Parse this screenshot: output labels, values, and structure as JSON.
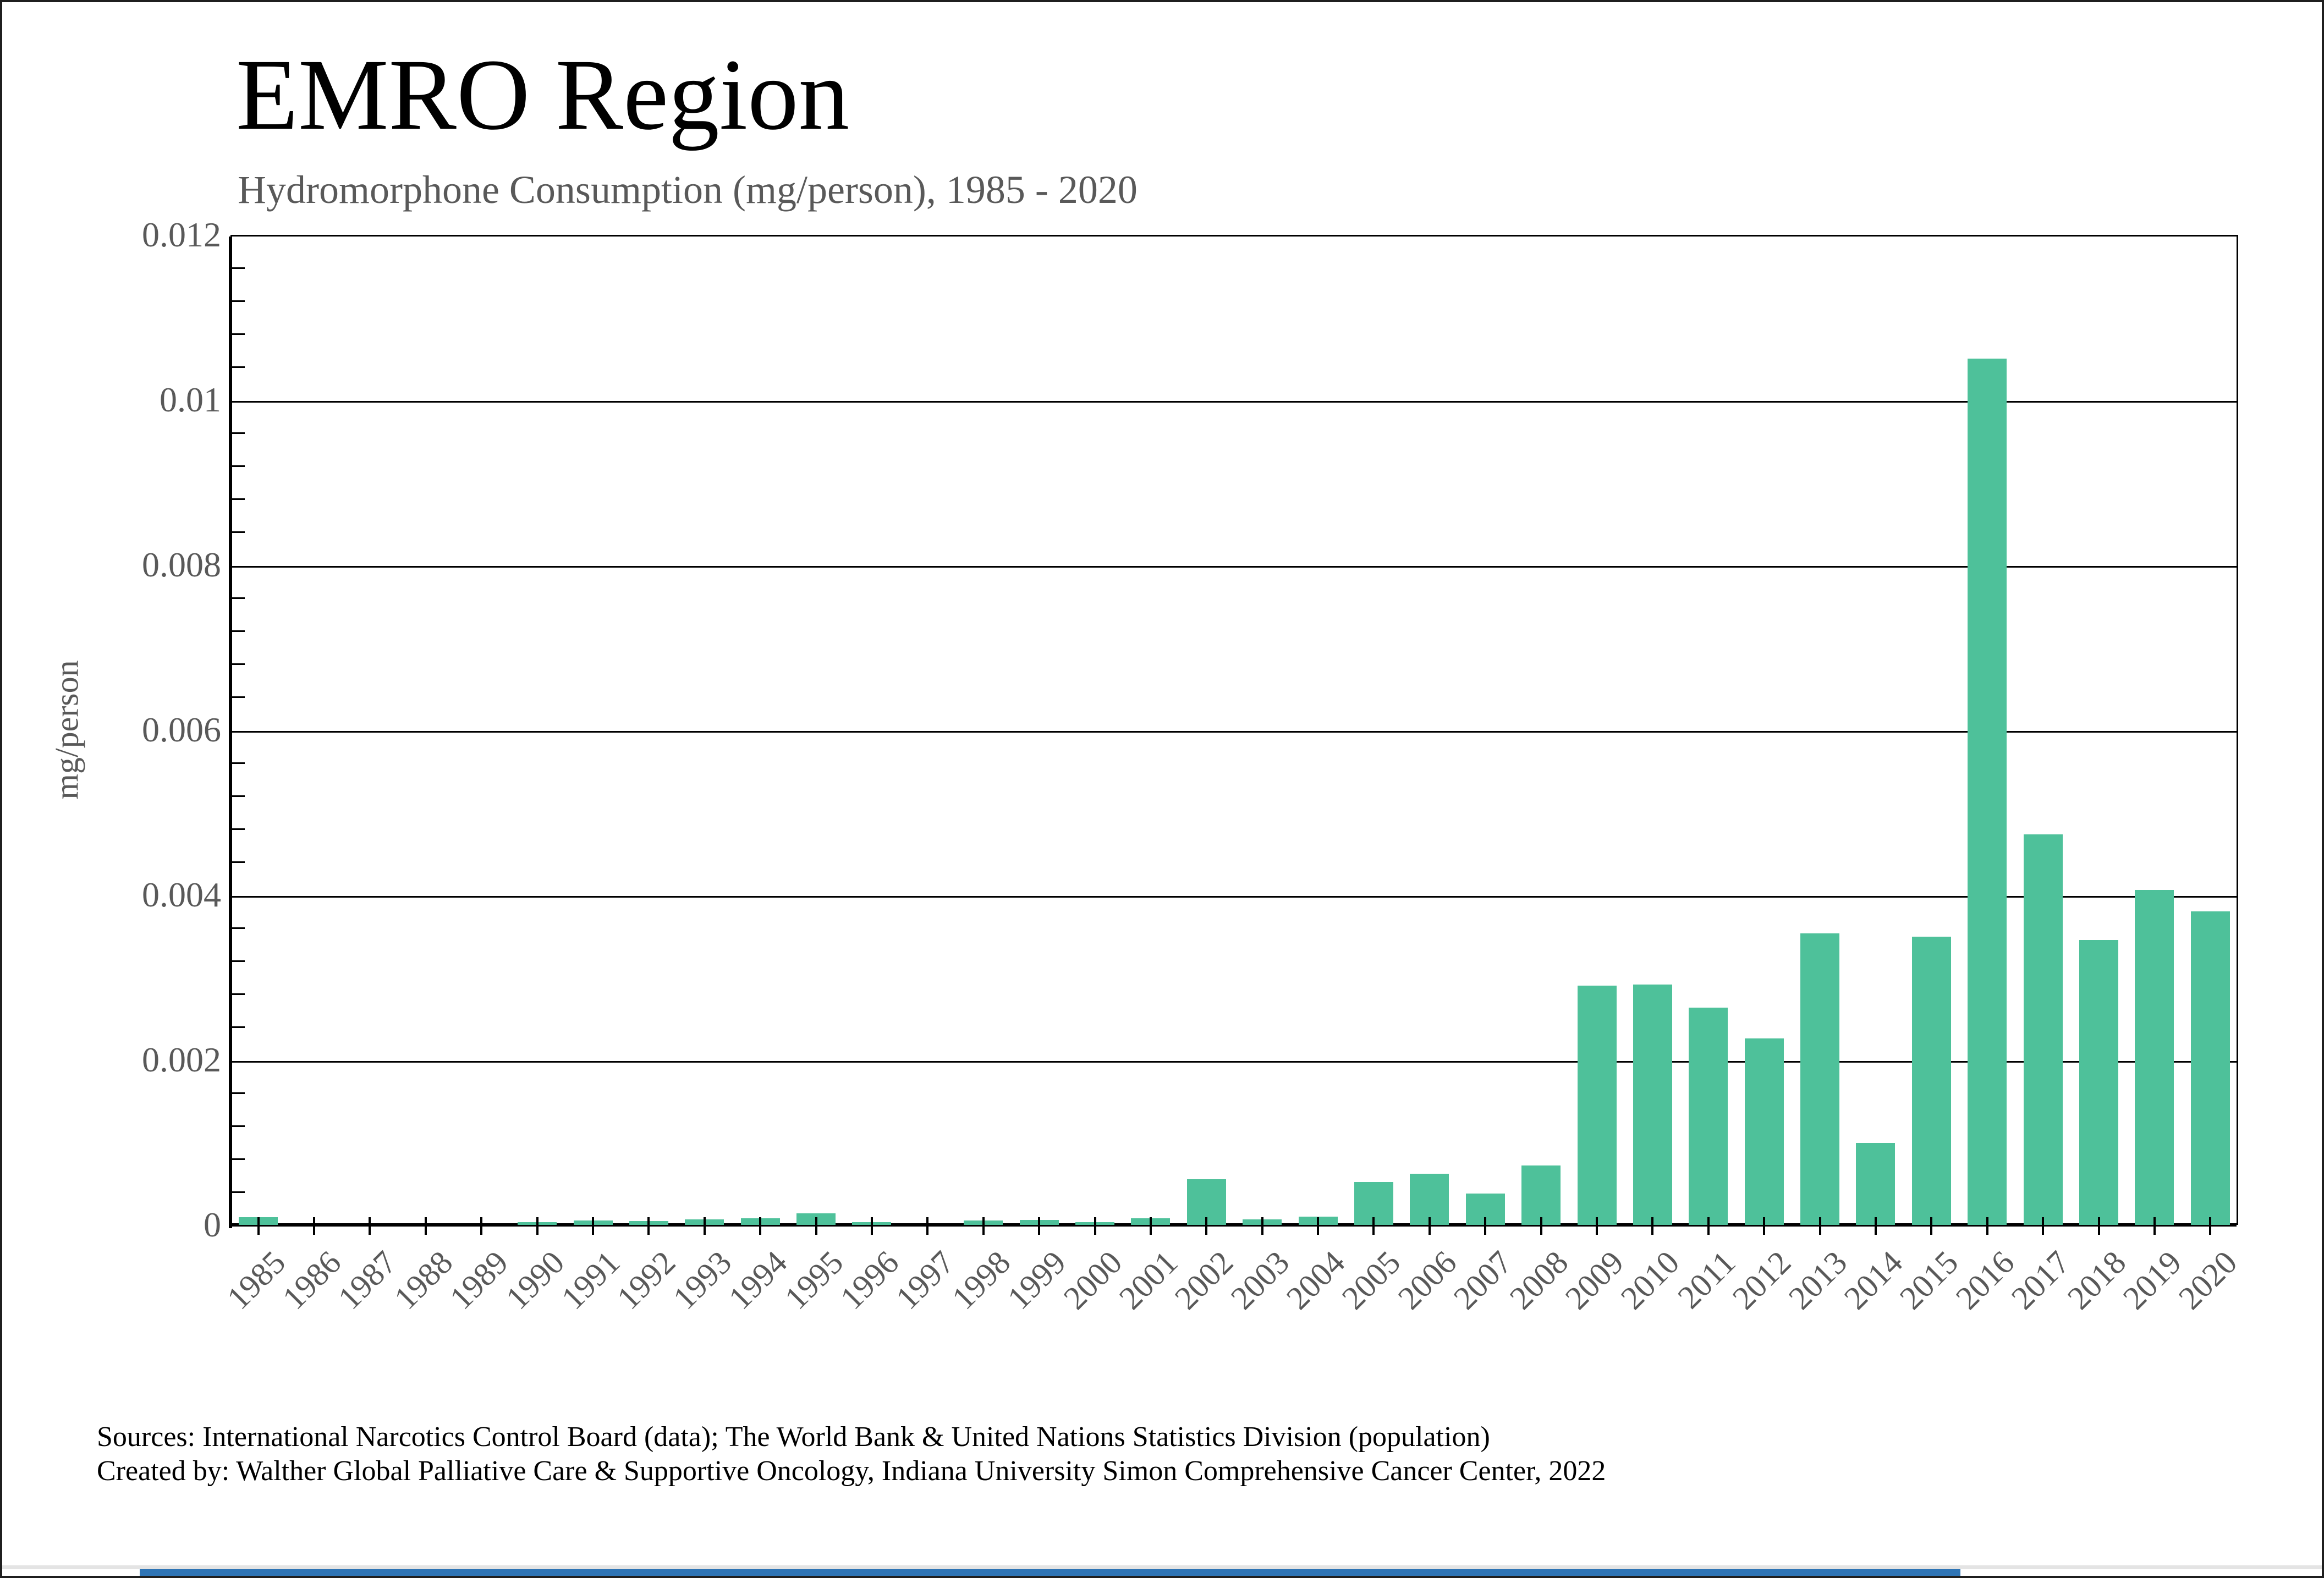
{
  "header": {
    "title": "EMRO Region",
    "subtitle": "Hydromorphone Consumption (mg/person), 1985 - 2020"
  },
  "footer": {
    "line1": "Sources: International Narcotics Control Board (data); The World Bank & United Nations Statistics Division (population)",
    "line2": "Created by: Walther Global Palliative Care & Supportive Oncology, Indiana University Simon Comprehensive Cancer Center, 2022"
  },
  "colors": {
    "bar_green": "#4EC19A",
    "axis_black": "#000000",
    "label_gray": "#595959",
    "bottom_bar_blue": "#2E74B5"
  },
  "chart_data": {
    "type": "bar",
    "title": "EMRO Region",
    "subtitle": "Hydromorphone Consumption (mg/person), 1985 - 2020",
    "xlabel": "",
    "ylabel": "mg/person",
    "ylim": [
      0,
      0.012
    ],
    "ytick_step": 0.002,
    "y_minor_step": 0.0004,
    "grid": "horizontal major gridlines on",
    "legend": "none",
    "categories": [
      "1985",
      "1986",
      "1987",
      "1988",
      "1989",
      "1990",
      "1991",
      "1992",
      "1993",
      "1994",
      "1995",
      "1996",
      "1997",
      "1998",
      "1999",
      "2000",
      "2001",
      "2002",
      "2003",
      "2004",
      "2005",
      "2006",
      "2007",
      "2008",
      "2009",
      "2010",
      "2011",
      "2012",
      "2013",
      "2014",
      "2015",
      "2016",
      "2017",
      "2018",
      "2019",
      "2020"
    ],
    "values": [
      9e-05,
      0,
      0,
      0,
      0,
      3e-05,
      5e-05,
      4.5e-05,
      7e-05,
      8e-05,
      0.00014,
      3e-05,
      0,
      5e-05,
      6e-05,
      3.5e-05,
      8e-05,
      0.00055,
      7e-05,
      0.0001,
      0.00052,
      0.00062,
      0.00038,
      0.00072,
      0.0029,
      0.00291,
      0.00263,
      0.00226,
      0.00353,
      0.00099,
      0.00349,
      0.0105,
      0.00473,
      0.00345,
      0.00406,
      0.0038
    ]
  }
}
